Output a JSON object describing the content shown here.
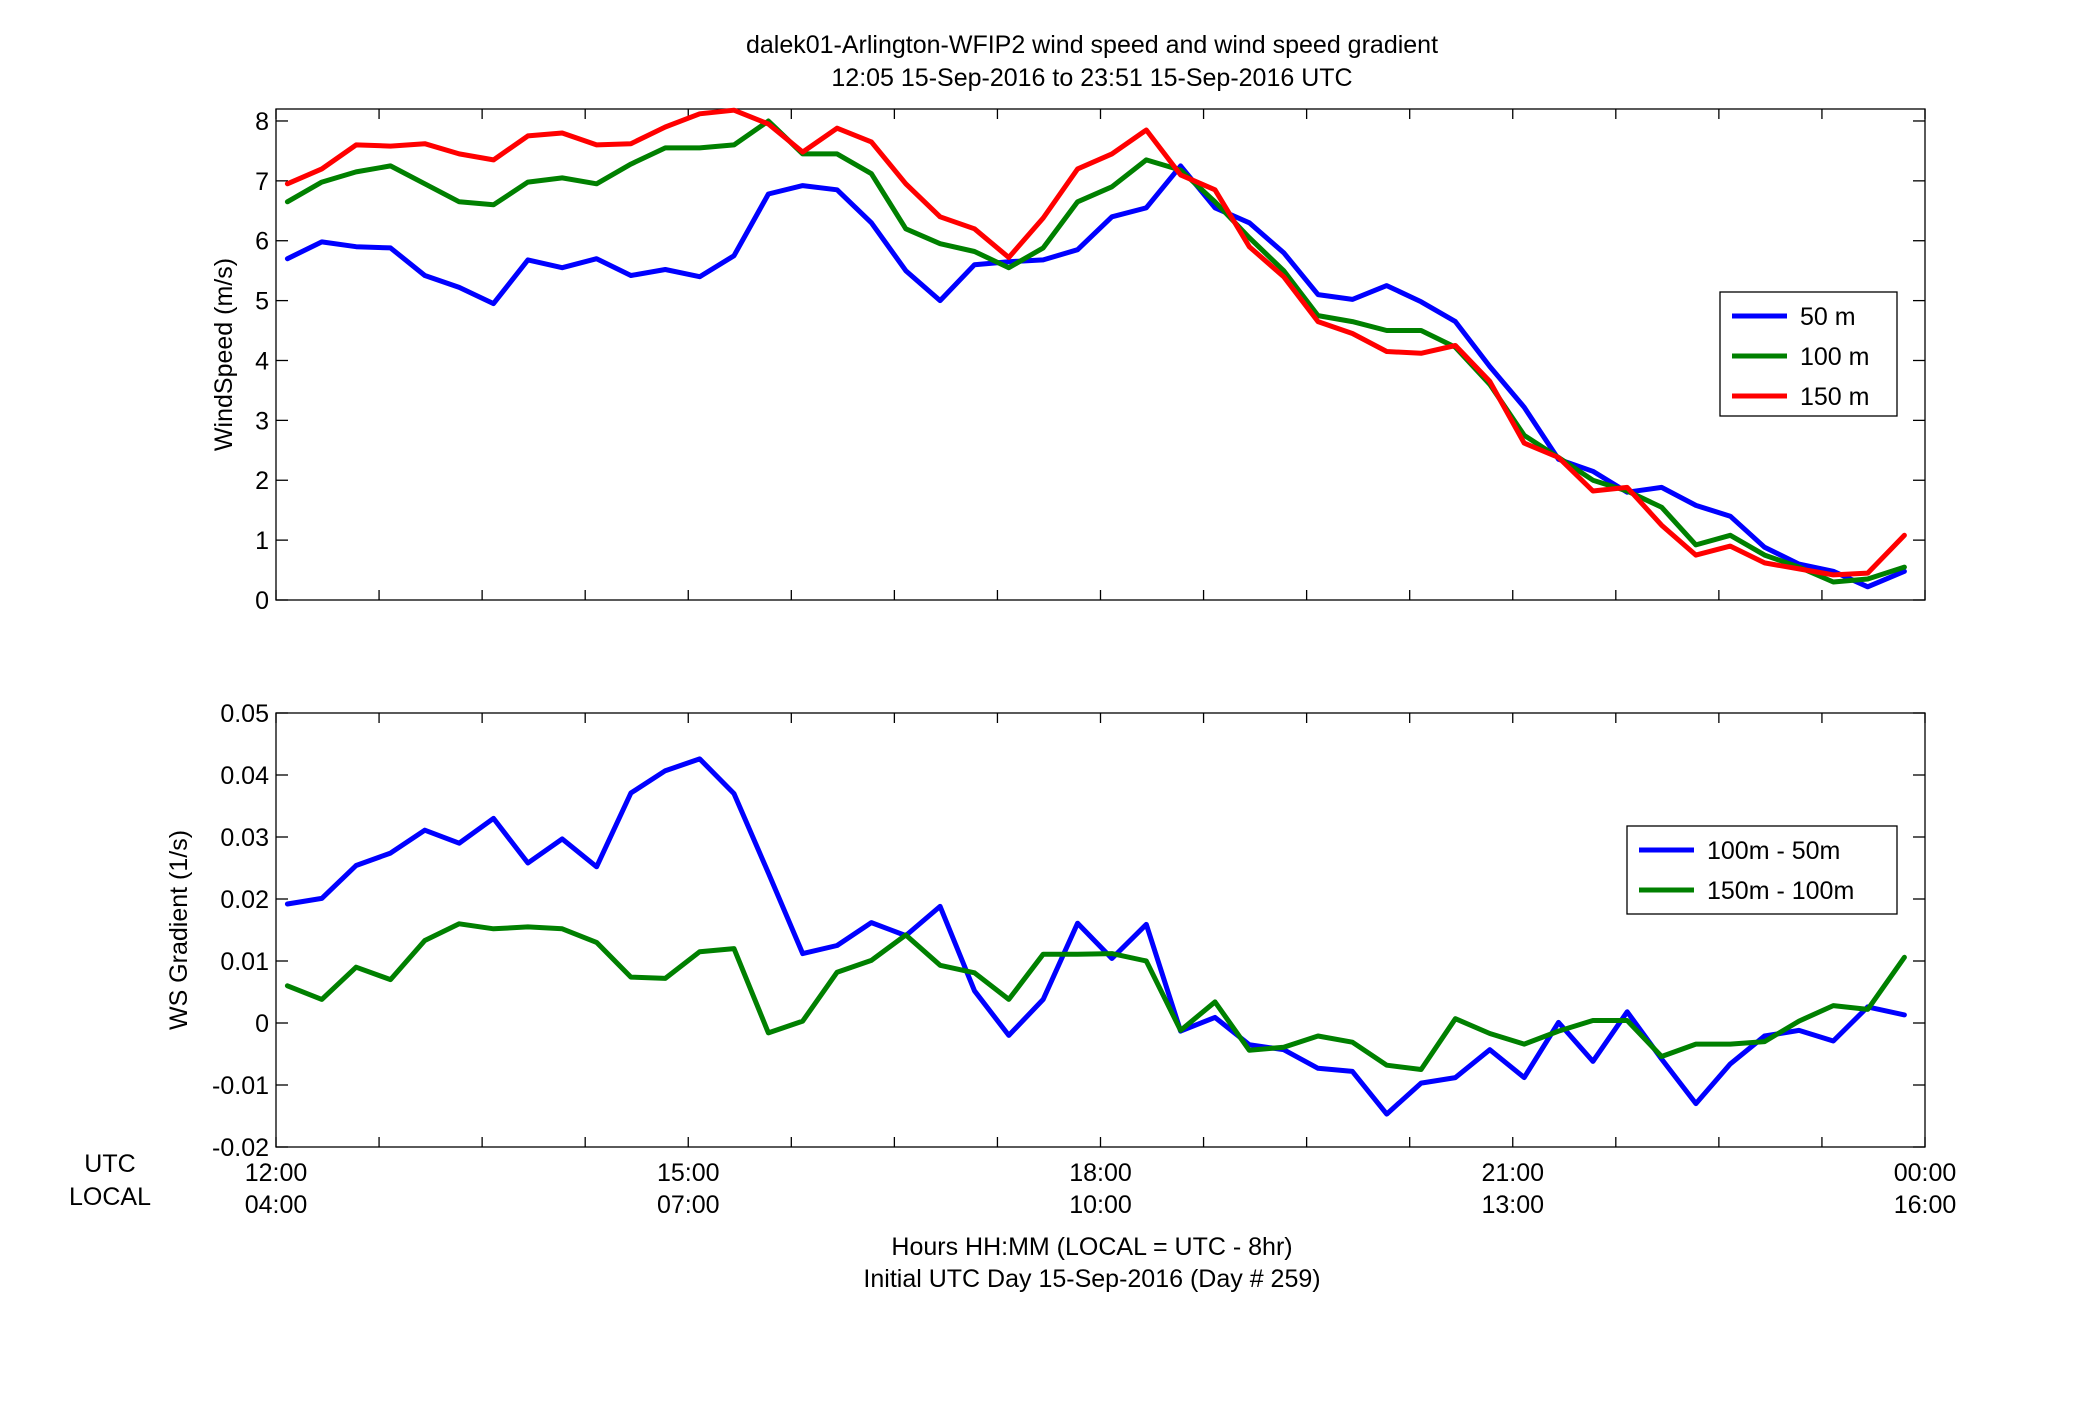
{
  "figure": {
    "title_line1": "dalek01-Arlington-WFIP2  wind speed and wind speed gradient",
    "title_line2": "12:05 15-Sep-2016 to 23:51 15-Sep-2016  UTC",
    "row_label_utc": "UTC",
    "row_label_local": "LOCAL",
    "xlabel_line1": "Hours HH:MM  (LOCAL = UTC - 8hr)",
    "xlabel_line2": "Initial UTC Day 15-Sep-2016 (Day # 259)",
    "x_ticks_utc": [
      "12:00",
      "15:00",
      "18:00",
      "21:00",
      "00:00"
    ],
    "x_ticks_local": [
      "04:00",
      "07:00",
      "10:00",
      "13:00",
      "16:00"
    ]
  },
  "chart_data": [
    {
      "type": "line",
      "title": "",
      "xlabel": "",
      "ylabel": "WindSpeed (m/s)",
      "xlim": [
        12,
        24
      ],
      "ylim": [
        0,
        8.2
      ],
      "yticks": [
        0,
        1,
        2,
        3,
        4,
        5,
        6,
        7,
        8
      ],
      "xticks": [
        12,
        15,
        18,
        21,
        24
      ],
      "grid": false,
      "legend": "right",
      "x": [
        12.083,
        12.333,
        12.583,
        12.833,
        13.083,
        13.333,
        13.583,
        13.833,
        14.083,
        14.333,
        14.583,
        14.833,
        15.083,
        15.333,
        15.583,
        15.833,
        16.083,
        16.333,
        16.583,
        16.833,
        17.083,
        17.333,
        17.583,
        17.833,
        18.083,
        18.333,
        18.583,
        18.833,
        19.083,
        19.333,
        19.583,
        19.833,
        20.083,
        20.333,
        20.583,
        20.833,
        21.083,
        21.333,
        21.583,
        21.833,
        22.083,
        22.333,
        22.583,
        22.833,
        23.083,
        23.333,
        23.583,
        23.85
      ],
      "series": [
        {
          "name": "50 m",
          "color": "#0000ff",
          "values": [
            5.7,
            5.98,
            5.9,
            5.88,
            5.42,
            5.22,
            4.95,
            5.68,
            5.55,
            5.7,
            5.42,
            5.52,
            5.4,
            5.75,
            6.78,
            6.92,
            6.85,
            6.3,
            5.5,
            5.0,
            5.6,
            5.65,
            5.68,
            5.85,
            6.4,
            6.55,
            7.25,
            6.55,
            6.3,
            5.8,
            5.1,
            5.02,
            5.25,
            4.98,
            4.65,
            3.9,
            3.22,
            2.35,
            2.15,
            1.8,
            1.88,
            1.58,
            1.4,
            0.88,
            0.6,
            0.48,
            0.22,
            0.48
          ]
        },
        {
          "name": "100 m",
          "color": "#008000",
          "values": [
            6.65,
            6.98,
            7.15,
            7.25,
            6.95,
            6.65,
            6.6,
            6.98,
            7.05,
            6.95,
            7.28,
            7.55,
            7.55,
            7.6,
            8.0,
            7.45,
            7.45,
            7.12,
            6.2,
            5.95,
            5.82,
            5.55,
            5.88,
            6.65,
            6.9,
            7.35,
            7.18,
            6.65,
            6.05,
            5.5,
            4.75,
            4.65,
            4.5,
            4.5,
            4.22,
            3.6,
            2.75,
            2.38,
            2.0,
            1.82,
            1.55,
            0.92,
            1.08,
            0.75,
            0.55,
            0.3,
            0.35,
            0.55
          ]
        },
        {
          "name": "150 m",
          "color": "#ff0000",
          "values": [
            6.95,
            7.2,
            7.6,
            7.58,
            7.62,
            7.45,
            7.35,
            7.75,
            7.8,
            7.6,
            7.62,
            7.9,
            8.12,
            8.18,
            7.95,
            7.48,
            7.88,
            7.65,
            6.95,
            6.4,
            6.2,
            5.72,
            6.38,
            7.2,
            7.45,
            7.85,
            7.1,
            6.85,
            5.9,
            5.4,
            4.65,
            4.45,
            4.15,
            4.12,
            4.25,
            3.65,
            2.62,
            2.38,
            1.82,
            1.88,
            1.25,
            0.75,
            0.9,
            0.62,
            0.52,
            0.42,
            0.45,
            1.08
          ]
        }
      ]
    },
    {
      "type": "line",
      "title": "",
      "xlabel": "",
      "ylabel": "WS Gradient (1/s)",
      "xlim": [
        12,
        24
      ],
      "ylim": [
        -0.02,
        0.05
      ],
      "yticks": [
        -0.02,
        -0.01,
        0,
        0.01,
        0.02,
        0.03,
        0.04,
        0.05
      ],
      "ytick_labels": [
        "-0.02",
        "-0.01",
        "0",
        "0.01",
        "0.02",
        "0.03",
        "0.04",
        "0.05"
      ],
      "xticks": [
        12,
        15,
        18,
        21,
        24
      ],
      "grid": false,
      "legend": "right",
      "x": [
        12.083,
        12.333,
        12.583,
        12.833,
        13.083,
        13.333,
        13.583,
        13.833,
        14.083,
        14.333,
        14.583,
        14.833,
        15.083,
        15.333,
        15.583,
        15.833,
        16.083,
        16.333,
        16.583,
        16.833,
        17.083,
        17.333,
        17.583,
        17.833,
        18.083,
        18.333,
        18.583,
        18.833,
        19.083,
        19.333,
        19.583,
        19.833,
        20.083,
        20.333,
        20.583,
        20.833,
        21.083,
        21.333,
        21.583,
        21.833,
        22.083,
        22.333,
        22.583,
        22.833,
        23.083,
        23.333,
        23.583,
        23.85
      ],
      "series": [
        {
          "name": "100m - 50m",
          "color": "#0000ff",
          "values": [
            0.0192,
            0.0201,
            0.0254,
            0.0274,
            0.0311,
            0.029,
            0.033,
            0.0258,
            0.0297,
            0.0252,
            0.0371,
            0.0407,
            0.0426,
            0.037,
            0.0242,
            0.0112,
            0.0125,
            0.0162,
            0.0141,
            0.0188,
            0.0052,
            -0.002,
            0.0038,
            0.0161,
            0.0104,
            0.0159,
            -0.0013,
            0.0009,
            -0.0035,
            -0.0043,
            -0.0073,
            -0.0078,
            -0.0147,
            -0.0097,
            -0.0088,
            -0.0043,
            -0.0088,
            0.0001,
            -0.0062,
            0.0018,
            -0.0058,
            -0.013,
            -0.0066,
            -0.0021,
            -0.0012,
            -0.0029,
            0.0026,
            0.0013
          ]
        },
        {
          "name": "150m - 100m",
          "color": "#008000",
          "values": [
            0.006,
            0.0038,
            0.009,
            0.007,
            0.0133,
            0.016,
            0.0152,
            0.0155,
            0.0152,
            0.013,
            0.0074,
            0.0072,
            0.0115,
            0.012,
            -0.0016,
            0.0003,
            0.0082,
            0.0101,
            0.0142,
            0.0093,
            0.0081,
            0.0038,
            0.0111,
            0.0111,
            0.0112,
            0.01,
            -0.0012,
            0.0034,
            -0.0044,
            -0.0039,
            -0.0021,
            -0.0031,
            -0.0068,
            -0.0075,
            0.0007,
            -0.0017,
            -0.0034,
            -0.0013,
            0.0004,
            0.0004,
            -0.0054,
            -0.0034,
            -0.0034,
            -0.003,
            0.0003,
            0.0028,
            0.0022,
            0.0106
          ]
        }
      ]
    }
  ]
}
